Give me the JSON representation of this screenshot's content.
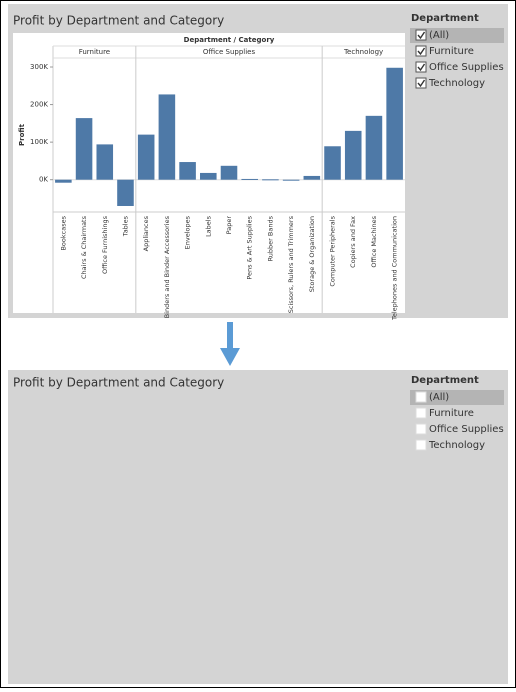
{
  "chart_data": {
    "type": "bar",
    "title": "Profit by Department and Category",
    "header": "Department / Category",
    "y_label": "Profit",
    "color": "#4e79a7",
    "ylim": [
      -86000,
      324000
    ],
    "yticks": [
      {
        "value": 0,
        "label": "0K"
      },
      {
        "value": 100000,
        "label": "100K"
      },
      {
        "value": 200000,
        "label": "200K"
      },
      {
        "value": 300000,
        "label": "300K"
      }
    ],
    "groups": [
      {
        "name": "Furniture",
        "categories": [
          "Bookcases",
          "Chairs & Chairmats",
          "Office Furnishings",
          "Tables"
        ],
        "values": [
          -8000,
          164000,
          94000,
          -70000
        ]
      },
      {
        "name": "Office Supplies",
        "categories": [
          "Appliances",
          "Binders and Binder Accessories",
          "Envelopes",
          "Labels",
          "Paper",
          "Pens & Art Supplies",
          "Rubber Bands",
          "Scissors, Rulers and Trimmers",
          "Storage & Organization"
        ],
        "values": [
          120000,
          227000,
          47000,
          18000,
          37000,
          2000,
          1000,
          -1000,
          10000
        ]
      },
      {
        "name": "Technology",
        "categories": [
          "Computer Peripherals",
          "Copiers and Fax",
          "Office Machines",
          "Telephones and Communication"
        ],
        "values": [
          89000,
          130000,
          170000,
          298000
        ]
      }
    ]
  },
  "filter": {
    "title": "Department",
    "items": [
      {
        "label": "(All)",
        "checked": true
      },
      {
        "label": "Furniture",
        "checked": true
      },
      {
        "label": "Office Supplies",
        "checked": true
      },
      {
        "label": "Technology",
        "checked": true
      }
    ]
  },
  "after": {
    "title": "Profit by Department and Category",
    "filter": {
      "title": "Department",
      "items": [
        {
          "label": "(All)",
          "checked": false
        },
        {
          "label": "Furniture",
          "checked": false
        },
        {
          "label": "Office Supplies",
          "checked": false
        },
        {
          "label": "Technology",
          "checked": false
        }
      ]
    }
  }
}
